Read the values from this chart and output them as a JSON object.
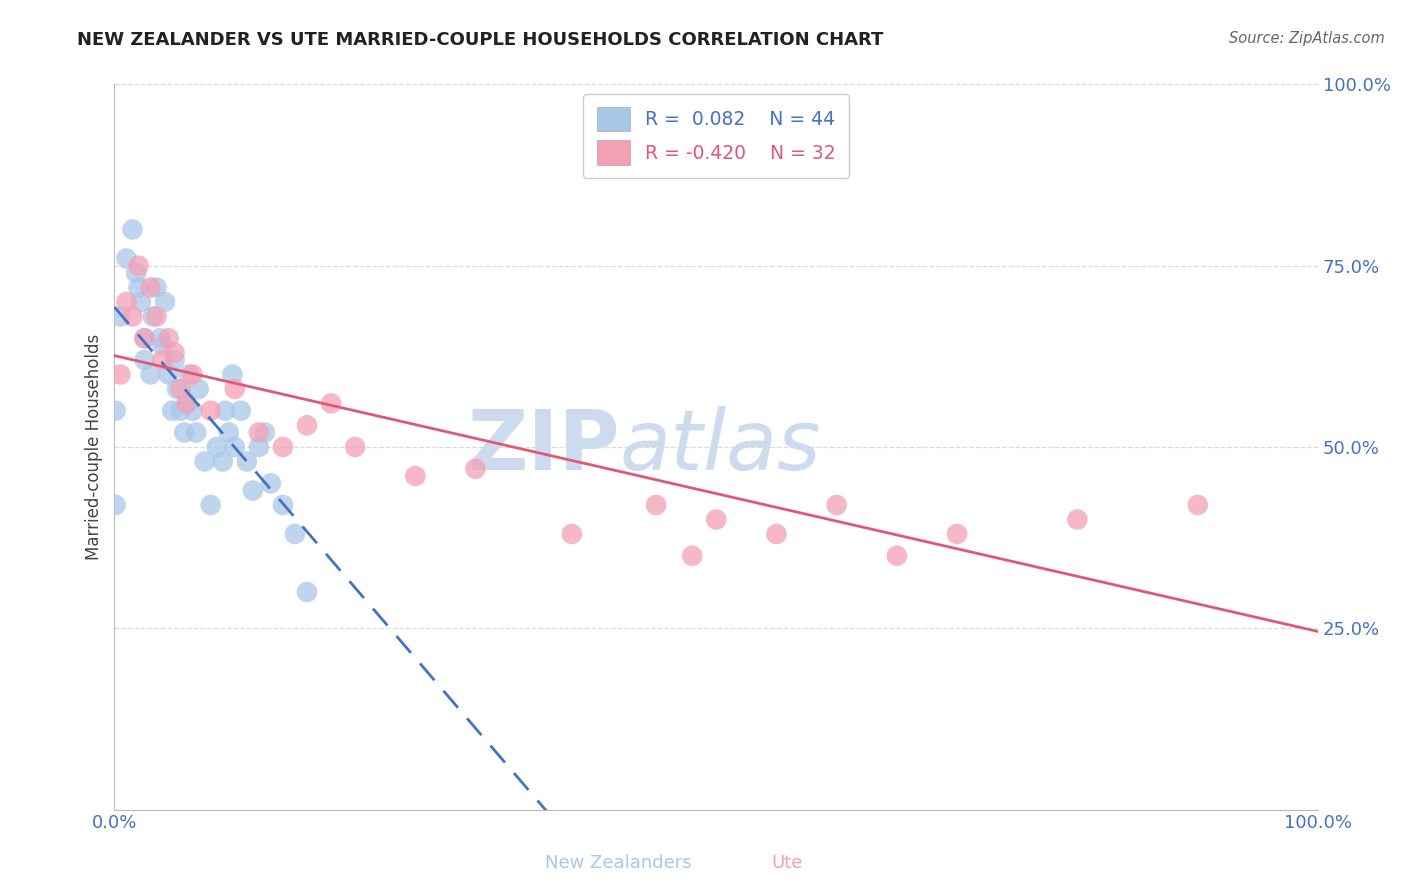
{
  "title": "NEW ZEALANDER VS UTE MARRIED-COUPLE HOUSEHOLDS CORRELATION CHART",
  "source": "Source: ZipAtlas.com",
  "ylabel": "Married-couple Households",
  "r_nz": 0.082,
  "n_nz": 44,
  "r_ute": -0.42,
  "n_ute": 32,
  "nz_color": "#a8c8e8",
  "ute_color": "#f4a0b5",
  "nz_line_color": "#4472c4",
  "ute_line_color": "#e05878",
  "watermark_color": "#ccdcee",
  "nz_scatter_x": [
    0.1,
    0.1,
    0.5,
    1.0,
    1.5,
    1.8,
    2.0,
    2.2,
    2.5,
    2.5,
    3.0,
    3.2,
    3.5,
    3.8,
    4.0,
    4.2,
    4.5,
    4.8,
    5.0,
    5.2,
    5.5,
    5.8,
    6.0,
    6.2,
    6.5,
    6.8,
    7.0,
    7.5,
    8.0,
    8.5,
    9.0,
    9.2,
    9.5,
    9.8,
    10.0,
    10.5,
    11.0,
    11.5,
    12.0,
    12.5,
    13.0,
    14.0,
    15.0,
    16.0
  ],
  "nz_scatter_y": [
    55,
    42,
    68,
    76,
    80,
    74,
    72,
    70,
    65,
    62,
    60,
    68,
    72,
    65,
    64,
    70,
    60,
    55,
    62,
    58,
    55,
    52,
    56,
    60,
    55,
    52,
    58,
    48,
    42,
    50,
    48,
    55,
    52,
    60,
    50,
    55,
    48,
    44,
    50,
    52,
    45,
    42,
    38,
    30
  ],
  "ute_scatter_x": [
    0.5,
    1.0,
    1.5,
    2.0,
    2.5,
    3.0,
    3.5,
    4.0,
    4.5,
    5.0,
    5.5,
    6.0,
    6.5,
    8.0,
    10.0,
    12.0,
    14.0,
    16.0,
    18.0,
    20.0,
    25.0,
    30.0,
    38.0,
    45.0,
    48.0,
    50.0,
    55.0,
    60.0,
    65.0,
    70.0,
    80.0,
    90.0
  ],
  "ute_scatter_y": [
    60,
    70,
    68,
    75,
    65,
    72,
    68,
    62,
    65,
    63,
    58,
    56,
    60,
    55,
    58,
    52,
    50,
    53,
    56,
    50,
    46,
    47,
    38,
    42,
    35,
    40,
    38,
    42,
    35,
    38,
    40,
    42
  ],
  "xmin": 0.0,
  "xmax": 100.0,
  "ymin": 0.0,
  "ymax": 100.0,
  "yticks": [
    25,
    50,
    75,
    100
  ],
  "ytick_labels": [
    "25.0%",
    "50.0%",
    "75.0%",
    "100.0%"
  ],
  "xtick_labels": [
    "0.0%",
    "100.0%"
  ],
  "background_color": "#ffffff",
  "grid_color": "#d0d0d0"
}
